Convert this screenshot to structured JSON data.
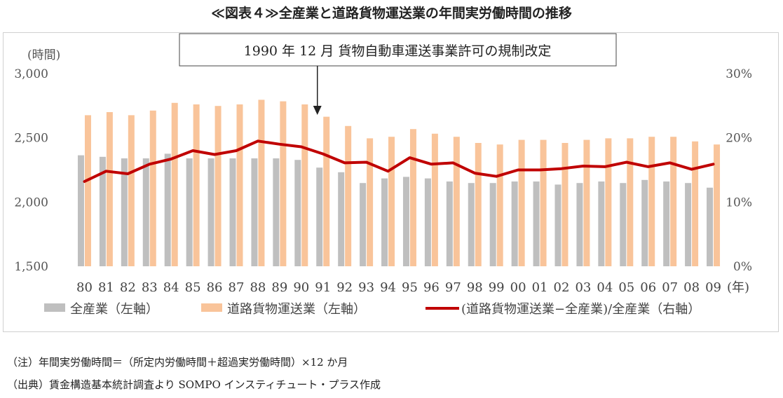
{
  "title": "≪図表４≫全産業と道路貨物運送業の年間実労働時間の推移",
  "notes": {
    "note1": "（注）年間実労働時間＝（所定内労働時間＋超過実労働時間）×12 か月",
    "note2": "（出典）賃金構造基本統計調査より SOMPO インスティチュート・プラス作成"
  },
  "colors": {
    "all_industry": "#bfbfbf",
    "road_freight": "#f9c49a",
    "ratio_line": "#c00000"
  },
  "chart_data": {
    "type": "bar",
    "title": "≪図表４≫全産業と道路貨物運送業の年間実労働時間の推移",
    "categories": [
      "80",
      "81",
      "82",
      "83",
      "84",
      "85",
      "86",
      "87",
      "88",
      "89",
      "90",
      "91",
      "92",
      "93",
      "94",
      "95",
      "96",
      "97",
      "98",
      "99",
      "00",
      "01",
      "02",
      "03",
      "04",
      "05",
      "06",
      "07",
      "08",
      "09"
    ],
    "x_unit": "(年)",
    "y_left": {
      "unit": "(時間)",
      "ylim": [
        1500,
        3000
      ],
      "ticks": [
        "1,500",
        "2,000",
        "2,500",
        "3,000"
      ]
    },
    "y_right": {
      "ylim": [
        0,
        30
      ],
      "ticks": [
        "0%",
        "10%",
        "20%",
        "30%"
      ]
    },
    "series": [
      {
        "name": "全産業（左軸）",
        "type": "bar",
        "axis": "left",
        "values": [
          2364,
          2352,
          2340,
          2340,
          2376,
          2340,
          2340,
          2340,
          2340,
          2340,
          2328,
          2268,
          2232,
          2148,
          2184,
          2196,
          2184,
          2160,
          2148,
          2148,
          2160,
          2160,
          2136,
          2148,
          2160,
          2148,
          2172,
          2160,
          2148,
          2112
        ]
      },
      {
        "name": "道路貨物運送業（左軸）",
        "type": "bar",
        "axis": "left",
        "values": [
          2676,
          2700,
          2676,
          2712,
          2772,
          2760,
          2748,
          2760,
          2796,
          2784,
          2760,
          2664,
          2592,
          2496,
          2508,
          2568,
          2532,
          2508,
          2460,
          2448,
          2484,
          2484,
          2460,
          2484,
          2496,
          2496,
          2508,
          2508,
          2472,
          2448
        ]
      },
      {
        "name": "(道路貨物運送業−全産業)/全産業（右軸）",
        "type": "line",
        "axis": "right",
        "values": [
          13.2,
          14.8,
          14.4,
          15.9,
          16.7,
          18.0,
          17.4,
          18.0,
          19.5,
          19.0,
          18.6,
          17.5,
          16.1,
          16.2,
          14.8,
          16.9,
          15.9,
          16.1,
          14.5,
          14.0,
          15.0,
          15.0,
          15.2,
          15.6,
          15.5,
          16.2,
          15.5,
          16.1,
          15.1,
          15.9
        ]
      }
    ],
    "annotation": {
      "text": "1990 年 12 月  貨物自動車運送事業許可の規制改定",
      "at_category": "91"
    },
    "grid": false,
    "legend": "bottom"
  }
}
